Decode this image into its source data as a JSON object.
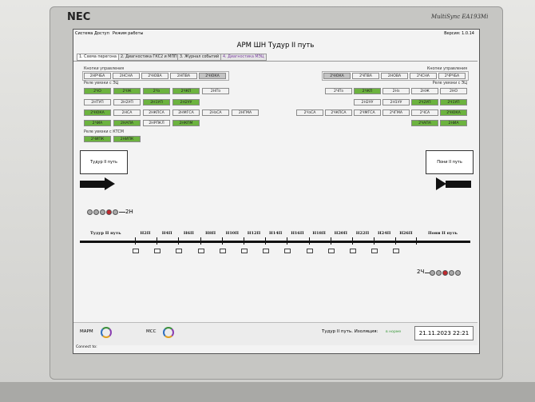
{
  "monitor": {
    "brand": "NEC",
    "model": "MultiSync EA193Mi"
  },
  "menu": [
    "Система",
    "Доступ",
    "Режим работы"
  ],
  "version": "Версия: 1.0.14",
  "title": "АРМ ШН  Тудур II путь",
  "tabs": [
    "1. Схема перегона",
    "2. Диагностика ГКС2 и МПП",
    "3. Журнал событий",
    "4. Диагностика МЭЦ"
  ],
  "left_panel": {
    "buttons_title": "Кнопки управления",
    "buttons": [
      {
        "label": "2НРЧБА",
        "color": "#f2f2f2"
      },
      {
        "label": "2НСНА",
        "color": "#f2f2f2"
      },
      {
        "label": "2ЧЮВА",
        "color": "#f2f2f2"
      },
      {
        "label": "2НПВА",
        "color": "#f2f2f2"
      },
      {
        "label": "2ЧЮКА",
        "color": "#c4c4c4"
      }
    ],
    "ec_title": "Реле увязки с ЭЦ",
    "ec_rows": [
      [
        {
          "label": "2ЧО",
          "color": "#6cb33f"
        },
        {
          "label": "2ЧЖ",
          "color": "#6cb33f"
        },
        {
          "label": "2Чз",
          "color": "#6cb33f"
        },
        {
          "label": "2ЧКП",
          "color": "#6cb33f"
        },
        {
          "label": "2НПз",
          "color": "#f2f2f2"
        }
      ],
      [
        {
          "label": "2НТУП",
          "color": "#f2f2f2"
        },
        {
          "label": "2Н2УП",
          "color": "#f2f2f2"
        },
        {
          "label": "2Н1УП",
          "color": "#6cb33f"
        },
        {
          "label": "2Н2УУ",
          "color": "#6cb33f"
        }
      ],
      [
        {
          "label": "2ЧЮКА",
          "color": "#6cb33f"
        },
        {
          "label": "2НСА",
          "color": "#f2f2f2"
        },
        {
          "label": "2НКПСА",
          "color": "#f2f2f2"
        },
        {
          "label": "2НМГСА",
          "color": "#f2f2f2"
        },
        {
          "label": "2НзСА",
          "color": "#f2f2f2"
        },
        {
          "label": "2НГМА",
          "color": "#f2f2f2"
        }
      ],
      [
        {
          "label": "2ЧИА",
          "color": "#6cb33f"
        },
        {
          "label": "2НАПА",
          "color": "#6cb33f"
        },
        {
          "label": "2НРПКЛ",
          "color": "#f2f2f2"
        },
        {
          "label": "2НКПМ",
          "color": "#6cb33f"
        }
      ]
    ],
    "ktsm_title": "Реле увязки с КТСМ",
    "ktsm": [
      {
        "label": "2ЧИПК",
        "color": "#6cb33f"
      },
      {
        "label": "2НИПК",
        "color": "#6cb33f"
      }
    ]
  },
  "right_panel": {
    "buttons_title": "Кнопки управления",
    "buttons": [
      {
        "label": "2ЧЮКА",
        "color": "#c4c4c4"
      },
      {
        "label": "2ЧПВА",
        "color": "#f2f2f2"
      },
      {
        "label": "2НОВА",
        "color": "#f2f2f2"
      },
      {
        "label": "2ЧСНА",
        "color": "#f2f2f2"
      },
      {
        "label": "2ЧРЧБА",
        "color": "#f2f2f2"
      }
    ],
    "ec_title": "Реле увязки с ЭЦ",
    "ec_rows": [
      [
        {
          "label": "2ЧПз",
          "color": "#f2f2f2"
        },
        {
          "label": "2ЧКП",
          "color": "#6cb33f"
        },
        {
          "label": "2Нз",
          "color": "#f2f2f2"
        },
        {
          "label": "2НЖ",
          "color": "#f2f2f2"
        },
        {
          "label": "2НО",
          "color": "#f2f2f2"
        }
      ],
      [
        {
          "label": "2Н2УУ",
          "color": "#f2f2f2"
        },
        {
          "label": "2Н1УУ",
          "color": "#f2f2f2"
        },
        {
          "label": "2Ч2УП",
          "color": "#6cb33f"
        },
        {
          "label": "2Ч1УП",
          "color": "#6cb33f"
        }
      ],
      [
        {
          "label": "2ЧзСА",
          "color": "#f2f2f2"
        },
        {
          "label": "2ЧКПСА",
          "color": "#f2f2f2"
        },
        {
          "label": "2ЧМГСА",
          "color": "#f2f2f2"
        },
        {
          "label": "2ЧГМА",
          "color": "#f2f2f2"
        },
        {
          "label": "2ЧСА",
          "color": "#f2f2f2"
        },
        {
          "label": "2ЧЮКА",
          "color": "#6cb33f"
        }
      ],
      [
        {
          "label": "2ЧАПА",
          "color": "#6cb33f"
        },
        {
          "label": "2НИА",
          "color": "#6cb33f"
        }
      ]
    ]
  },
  "stations": {
    "left": "Тудур II путь",
    "right": "Пони II путь"
  },
  "signals": {
    "left": "2Н",
    "right": "2Ч"
  },
  "track": {
    "left": "Тудур II путь",
    "sections": [
      "Н2П",
      "Н4П",
      "Н6П",
      "Н8П",
      "Н10П",
      "Н12П",
      "Н14П",
      "Н16П",
      "Н18П",
      "Н20П",
      "Н22П",
      "Н24П",
      "Н26П"
    ],
    "right": "Пони II путь"
  },
  "status": {
    "marm": "МАРМ",
    "mss": "МСС",
    "isolation": "Тудур II путь. Изоляция:",
    "isolation_state": "в норме",
    "datetime": "21.11.2023 22:21"
  },
  "connect": "Connect to:"
}
